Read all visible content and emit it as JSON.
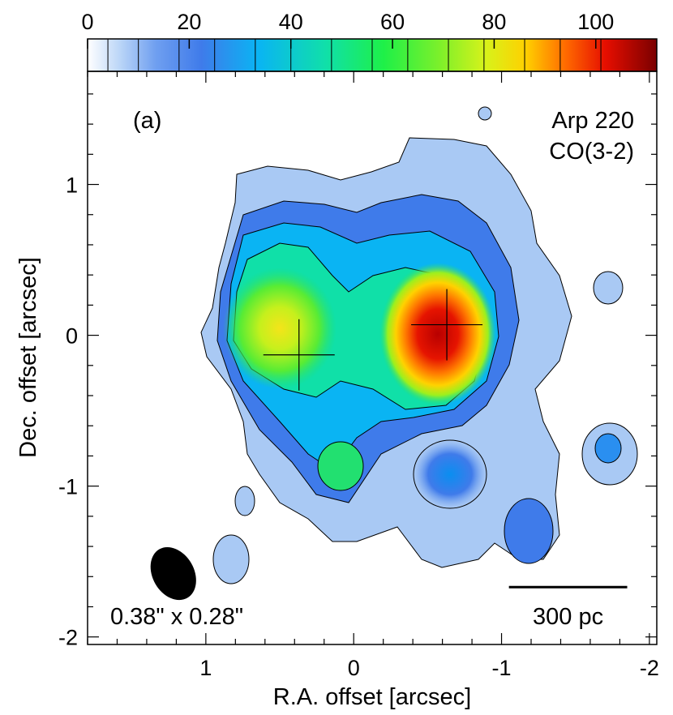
{
  "chart_data": {
    "type": "heatmap",
    "panel_label": "(a)",
    "annotation_lines": [
      "Arp 220",
      "CO(3-2)"
    ],
    "xlabel": "R.A. offset [arcsec]",
    "ylabel": "Dec. offset [arcsec]",
    "xlim": [
      1.8,
      -2.05
    ],
    "ylim": [
      -2.05,
      1.75
    ],
    "x_ticks": [
      1,
      0,
      -1,
      -2
    ],
    "x_tick_labels": [
      "1",
      "0",
      "-1",
      "-2"
    ],
    "y_ticks": [
      1,
      0,
      -1,
      -2
    ],
    "y_tick_labels": [
      "1",
      "0",
      "-1",
      "-2"
    ],
    "colorbar": {
      "range": [
        0,
        112
      ],
      "ticks": [
        0,
        20,
        40,
        60,
        80,
        100
      ],
      "tick_labels": [
        "0",
        "20",
        "40",
        "60",
        "80",
        "100"
      ],
      "contour_levels": [
        4,
        10,
        18,
        25,
        33,
        40,
        48,
        56,
        63,
        71,
        78,
        86,
        93,
        101
      ],
      "colors": [
        "#ffffff",
        "#3f7bea",
        "#0ab4f3",
        "#10e0a8",
        "#1ef048",
        "#b9f01c",
        "#ffd000",
        "#ff6a00",
        "#e60e00",
        "#7a0000"
      ]
    },
    "beam": {
      "label": "0.38\" x 0.28\"",
      "major_arcsec": 0.38,
      "minor_arcsec": 0.28,
      "center": [
        1.22,
        -1.58
      ]
    },
    "scale_bar": {
      "label": "300 pc",
      "from_x": -1.05,
      "to_x": -1.85,
      "y": -1.67
    },
    "crosses": [
      {
        "name": "west nucleus",
        "x": -0.63,
        "y": 0.07
      },
      {
        "name": "east nucleus",
        "x": 0.37,
        "y": -0.13
      }
    ],
    "peak_intensity": 112
  }
}
